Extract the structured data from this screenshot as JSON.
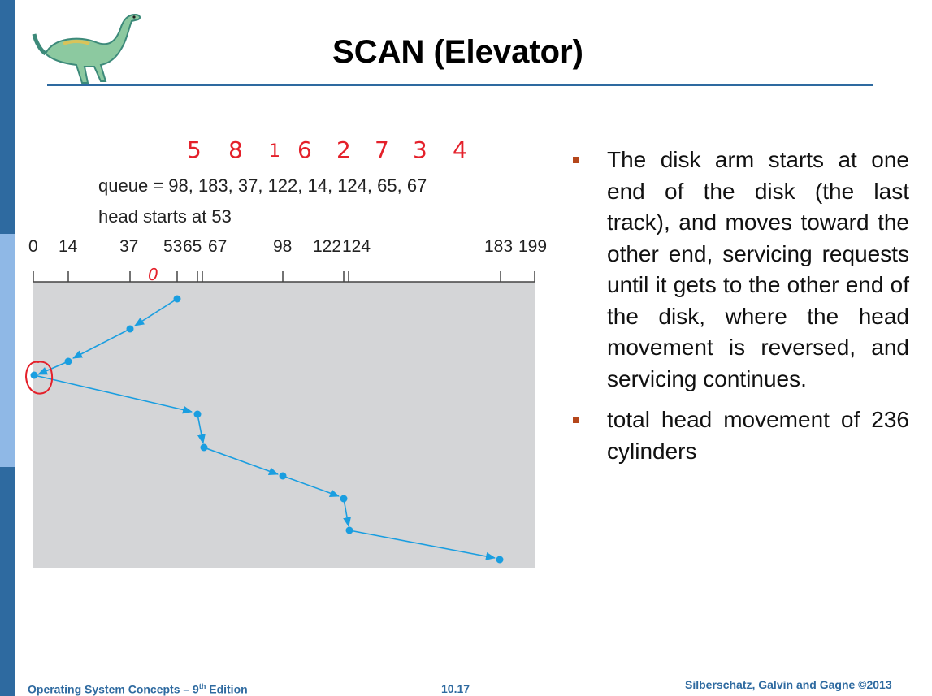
{
  "header": {
    "title": "SCAN (Elevator)"
  },
  "logo": {
    "name": "dinosaur-logo"
  },
  "annotation": {
    "order_numbers": [
      "5",
      "8",
      "1",
      "6",
      "2",
      "7",
      "3",
      "4"
    ],
    "zero_mark": "0"
  },
  "diagram": {
    "queue_line": "queue = 98, 183, 37, 122, 14, 124, 65, 67",
    "head_line": "head starts at 53",
    "axis_ticks": [
      "0",
      "14",
      "37",
      "53",
      "65",
      "67",
      "98",
      "122",
      "124",
      "183",
      "199"
    ],
    "path_cylinders": [
      53,
      37,
      14,
      0,
      65,
      67,
      98,
      122,
      124,
      183
    ]
  },
  "bullets": [
    "The disk arm starts at one end of the disk (the last track), and moves toward the other end, servicing requests until it gets to the other end of the disk, where the head movement is reversed, and servicing continues.",
    "total head movement of 236 cylinders"
  ],
  "footer": {
    "left_main": "Operating System Concepts – 9",
    "left_sup": "th",
    "left_end": " Edition",
    "center": "10.17",
    "right": "Silberschatz, Galvin and Gagne ©2013"
  },
  "colors": {
    "accent": "#2e6aa0",
    "path": "#1a9ee0",
    "annotation": "#e4202a",
    "panel": "#d4d5d7"
  }
}
